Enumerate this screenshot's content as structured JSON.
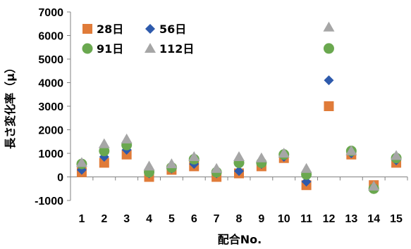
{
  "chart_data": {
    "type": "scatter",
    "title": "",
    "xlabel": "配合No.",
    "ylabel": "長さ変化率（μ）",
    "categories": [
      "1",
      "2",
      "3",
      "4",
      "5",
      "6",
      "7",
      "8",
      "9",
      "10",
      "11",
      "12",
      "13",
      "14",
      "15"
    ],
    "ylim": [
      -1000,
      7000
    ],
    "yticks": [
      -1000,
      0,
      1000,
      2000,
      3000,
      4000,
      5000,
      6000,
      7000
    ],
    "grid": false,
    "legend_position": "top-left",
    "series": [
      {
        "name": "28日",
        "marker": "square",
        "color": "#E07B39",
        "values": [
          200,
          600,
          950,
          0,
          300,
          450,
          0,
          150,
          450,
          800,
          -350,
          3000,
          950,
          -350,
          600
        ]
      },
      {
        "name": "56日",
        "marker": "diamond",
        "color": "#2E5AAC",
        "values": [
          300,
          850,
          1150,
          150,
          350,
          550,
          150,
          250,
          550,
          850,
          -200,
          4100,
          1000,
          -450,
          700
        ]
      },
      {
        "name": "91日",
        "marker": "circle",
        "color": "#6AA84F",
        "values": [
          550,
          1100,
          1350,
          200,
          400,
          750,
          200,
          600,
          600,
          950,
          100,
          5450,
          1100,
          -500,
          800
        ]
      },
      {
        "name": "112日",
        "marker": "triangle",
        "color": "#A6A6A6",
        "values": [
          600,
          1400,
          1600,
          450,
          550,
          850,
          350,
          850,
          800,
          1000,
          350,
          6350,
          1100,
          -400,
          900
        ]
      }
    ]
  }
}
